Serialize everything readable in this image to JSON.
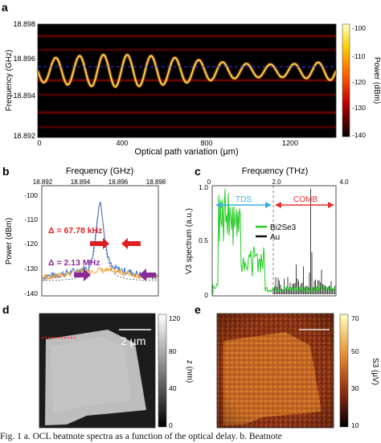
{
  "panels": {
    "a": {
      "letter": "a",
      "ylabel": "Frequency (GHz)",
      "xlabel": "Optical path variation (µm)",
      "yticks": [
        "18.898",
        "18.896",
        "18.894",
        "18.892"
      ],
      "xticks": [
        "0",
        "400",
        "800",
        "1200"
      ],
      "colorbar_label": "Power (dBm)",
      "colorbar_ticks": [
        "-100",
        "-110",
        "-120",
        "-130",
        "-140"
      ]
    },
    "b": {
      "letter": "b",
      "xlabel_top": "Frequency (GHz)",
      "xticks": [
        "18.892",
        "18.894",
        "18.896",
        "18.898"
      ],
      "ylabel": "Power (dBm)",
      "yticks": [
        "-100",
        "-110",
        "-120",
        "-130",
        "-140"
      ],
      "ann_khz": "Δ = 67.78 kHz",
      "ann_mhz": "Δ = 2.13 MHz"
    },
    "c": {
      "letter": "c",
      "xlabel_top": "Frequency (THz)",
      "xticks": [
        "0",
        "2.0",
        "4.0"
      ],
      "ylabel": "V3 spectrum (a.u.)",
      "yticks": [
        "1.0",
        "0.5",
        "0"
      ],
      "tds": "TDS",
      "comb": "COMB",
      "legend": [
        "Bi2Se3",
        "Au"
      ]
    },
    "d": {
      "letter": "d",
      "scalebar": "2 µm",
      "colorbar_label": "z (nm)",
      "colorbar_ticks": [
        "120",
        "80",
        "40",
        "0"
      ]
    },
    "e": {
      "letter": "e",
      "colorbar_label": "S3 (µV)",
      "colorbar_ticks": [
        "70",
        "50",
        "30",
        "10"
      ]
    }
  },
  "caption": "Fig. 1 a. OCL beatnote spectra as a function of the optical delay. b. Beatnote"
}
